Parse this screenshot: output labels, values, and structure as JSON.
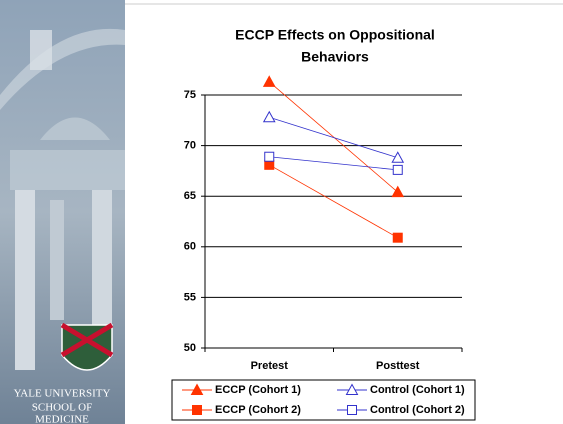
{
  "logo_text": [
    "YALE UNIVERSITY",
    "SCHOOL OF",
    "MEDICINE"
  ],
  "chart_data": {
    "type": "line",
    "title": [
      "ECCP Effects on Oppositional",
      "Behaviors"
    ],
    "categories": [
      "Pretest",
      "Posttest"
    ],
    "series": [
      {
        "name": "ECCP (Cohort 1)",
        "color": "#ff3300",
        "marker": "triangle",
        "filled": true,
        "values": [
          76.3,
          65.4
        ]
      },
      {
        "name": "Control (Cohort 1)",
        "color": "#3333cc",
        "marker": "triangle",
        "filled": false,
        "values": [
          72.8,
          68.8
        ]
      },
      {
        "name": "ECCP (Cohort 2)",
        "color": "#ff3300",
        "marker": "square",
        "filled": true,
        "values": [
          68.1,
          60.9
        ]
      },
      {
        "name": "Control (Cohort 2)",
        "color": "#3333cc",
        "marker": "square",
        "filled": false,
        "values": [
          68.9,
          67.6
        ]
      }
    ],
    "ylim": [
      50,
      75
    ],
    "yticks": [
      50,
      55,
      60,
      65,
      70,
      75
    ],
    "grid": true,
    "legend": "bottom"
  }
}
